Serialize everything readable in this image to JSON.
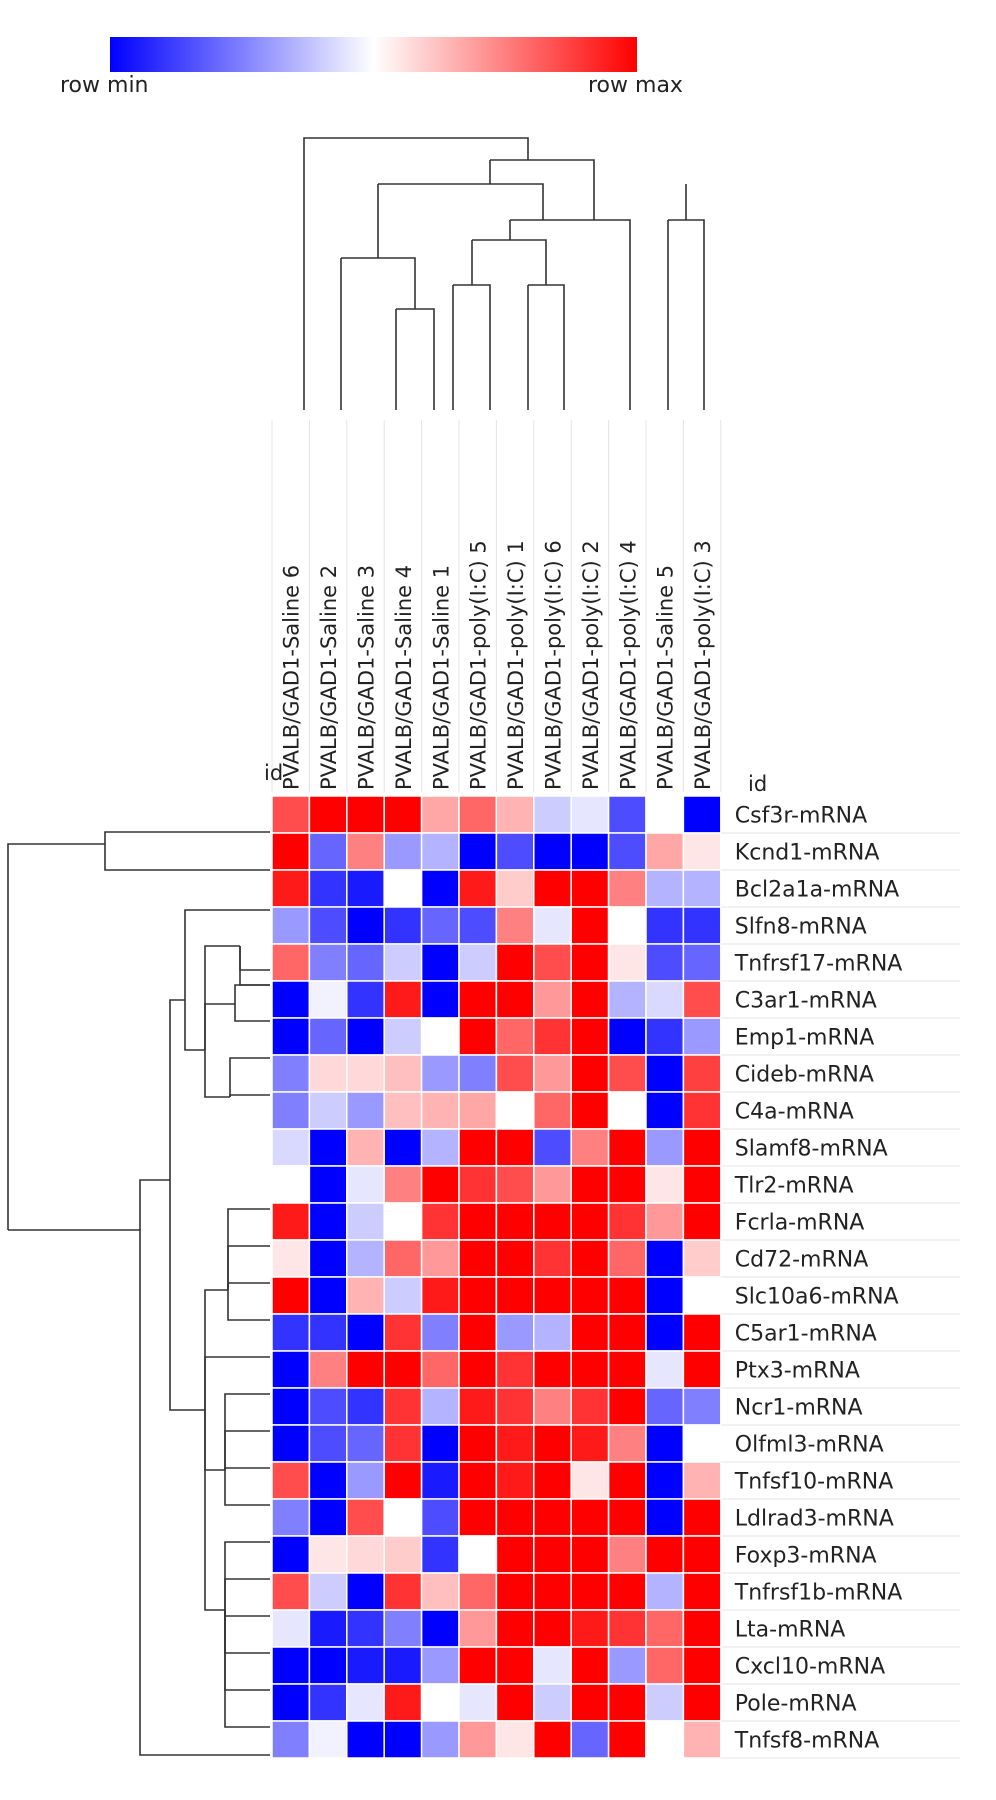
{
  "chart_data": {
    "type": "heatmap",
    "legend": {
      "min_label": "row min",
      "max_label": "row max",
      "colors": [
        "#0000ff",
        "#ffffff",
        "#ff0000"
      ]
    },
    "corner_label_top": "id",
    "corner_label_right": "id",
    "columns": [
      "PVALB/GAD1-Saline 6",
      "PVALB/GAD1-Saline 2",
      "PVALB/GAD1-Saline 3",
      "PVALB/GAD1-Saline 4",
      "PVALB/GAD1-Saline 1",
      "PVALB/GAD1-poly(I:C) 5",
      "PVALB/GAD1-poly(I:C) 1",
      "PVALB/GAD1-poly(I:C) 6",
      "PVALB/GAD1-poly(I:C) 2",
      "PVALB/GAD1-poly(I:C) 4",
      "PVALB/GAD1-Saline 5",
      "PVALB/GAD1-poly(I:C) 3"
    ],
    "rows": [
      "Csf3r-mRNA",
      "Kcnd1-mRNA",
      "Bcl2a1a-mRNA",
      "Slfn8-mRNA",
      "Tnfrsf17-mRNA",
      "C3ar1-mRNA",
      "Emp1-mRNA",
      "Cideb-mRNA",
      "C4a-mRNA",
      "Slamf8-mRNA",
      "Tlr2-mRNA",
      "Fcrla-mRNA",
      "Cd72-mRNA",
      "Slc10a6-mRNA",
      "C5ar1-mRNA",
      "Ptx3-mRNA",
      "Ncr1-mRNA",
      "Olfml3-mRNA",
      "Tnfsf10-mRNA",
      "Ldlrad3-mRNA",
      "Foxp3-mRNA",
      "Tnfrsf1b-mRNA",
      "Lta-mRNA",
      "Cxcl10-mRNA",
      "Pole-mRNA",
      "Tnfsf8-mRNA"
    ],
    "values": [
      [
        0.7,
        1.0,
        1.0,
        1.0,
        0.35,
        0.6,
        0.3,
        -0.2,
        -0.1,
        -0.7,
        0.0,
        -1.0
      ],
      [
        1.0,
        -0.6,
        0.5,
        -0.4,
        -0.3,
        -1.0,
        -0.7,
        -1.0,
        -1.0,
        -0.7,
        0.35,
        0.1
      ],
      [
        0.9,
        -0.8,
        -0.9,
        0.0,
        -1.0,
        0.9,
        0.2,
        1.0,
        1.0,
        0.5,
        -0.3,
        -0.3
      ],
      [
        -0.4,
        -0.7,
        -1.0,
        -0.8,
        -0.6,
        -0.7,
        0.5,
        -0.1,
        1.0,
        0.0,
        -0.8,
        -0.8
      ],
      [
        0.6,
        -0.5,
        -0.6,
        -0.2,
        -1.0,
        -0.2,
        1.0,
        0.7,
        1.0,
        0.1,
        -0.7,
        -0.6
      ],
      [
        -1.0,
        -0.05,
        -0.8,
        0.9,
        -1.0,
        1.0,
        1.0,
        0.4,
        1.0,
        -0.3,
        -0.15,
        0.7
      ],
      [
        -1.0,
        -0.6,
        -1.0,
        -0.2,
        0.0,
        1.0,
        0.6,
        0.8,
        1.0,
        -1.0,
        -0.8,
        -0.4
      ],
      [
        -0.5,
        0.15,
        0.15,
        0.25,
        -0.4,
        -0.5,
        0.7,
        0.4,
        1.0,
        0.7,
        -1.0,
        0.75
      ],
      [
        -0.5,
        -0.2,
        -0.4,
        0.25,
        0.3,
        0.35,
        0.0,
        0.6,
        1.0,
        0.0,
        -1.0,
        0.8
      ],
      [
        -0.15,
        -1.0,
        0.3,
        -1.0,
        -0.3,
        1.0,
        1.0,
        -0.7,
        0.5,
        1.0,
        -0.4,
        1.0
      ],
      [
        0.0,
        -1.0,
        -0.1,
        0.5,
        1.0,
        0.8,
        0.7,
        0.4,
        1.0,
        1.0,
        0.1,
        1.0
      ],
      [
        0.9,
        -1.0,
        -0.2,
        0.0,
        0.8,
        1.0,
        1.0,
        1.0,
        1.0,
        0.8,
        0.4,
        1.0
      ],
      [
        0.1,
        -1.0,
        -0.3,
        0.6,
        0.4,
        1.0,
        1.0,
        0.8,
        1.0,
        0.6,
        -1.0,
        0.2
      ],
      [
        1.0,
        -1.0,
        0.3,
        -0.2,
        0.9,
        1.0,
        1.0,
        1.0,
        1.0,
        1.0,
        -1.0,
        0.0
      ],
      [
        -0.8,
        -0.8,
        -1.0,
        0.8,
        -0.5,
        1.0,
        -0.4,
        -0.3,
        1.0,
        1.0,
        -1.0,
        1.0
      ],
      [
        -1.0,
        0.5,
        1.0,
        1.0,
        0.6,
        1.0,
        0.8,
        1.0,
        1.0,
        1.0,
        -0.1,
        1.0
      ],
      [
        -1.0,
        -0.7,
        -0.8,
        0.8,
        -0.3,
        0.9,
        0.8,
        0.5,
        0.8,
        1.0,
        -0.6,
        -0.5
      ],
      [
        -1.0,
        -0.7,
        -0.6,
        0.8,
        -1.0,
        1.0,
        0.9,
        1.0,
        0.9,
        0.5,
        -1.0,
        0.0
      ],
      [
        0.7,
        -1.0,
        -0.4,
        1.0,
        -0.9,
        1.0,
        0.9,
        1.0,
        0.1,
        1.0,
        -1.0,
        0.3
      ],
      [
        -0.5,
        -1.0,
        0.7,
        0.0,
        -0.7,
        1.0,
        1.0,
        1.0,
        1.0,
        1.0,
        -1.0,
        1.0
      ],
      [
        -1.0,
        0.1,
        0.15,
        0.2,
        -0.8,
        0.0,
        1.0,
        1.0,
        1.0,
        0.5,
        1.0,
        1.0
      ],
      [
        0.7,
        -0.2,
        -1.0,
        0.8,
        0.25,
        0.6,
        1.0,
        1.0,
        1.0,
        1.0,
        -0.3,
        1.0
      ],
      [
        -0.1,
        -0.9,
        -0.8,
        -0.5,
        -1.0,
        0.4,
        1.0,
        1.0,
        0.9,
        0.8,
        0.6,
        1.0
      ],
      [
        -1.0,
        -1.0,
        -0.9,
        -0.9,
        -0.4,
        1.0,
        1.0,
        -0.1,
        1.0,
        -0.4,
        0.6,
        1.0
      ],
      [
        -1.0,
        -0.8,
        -0.1,
        0.9,
        0.0,
        -0.1,
        1.0,
        -0.2,
        1.0,
        1.0,
        -0.2,
        1.0
      ],
      [
        -0.5,
        -0.05,
        -1.0,
        -1.0,
        -0.4,
        0.4,
        0.1,
        1.0,
        -0.6,
        1.0,
        0.0,
        0.3
      ]
    ]
  }
}
